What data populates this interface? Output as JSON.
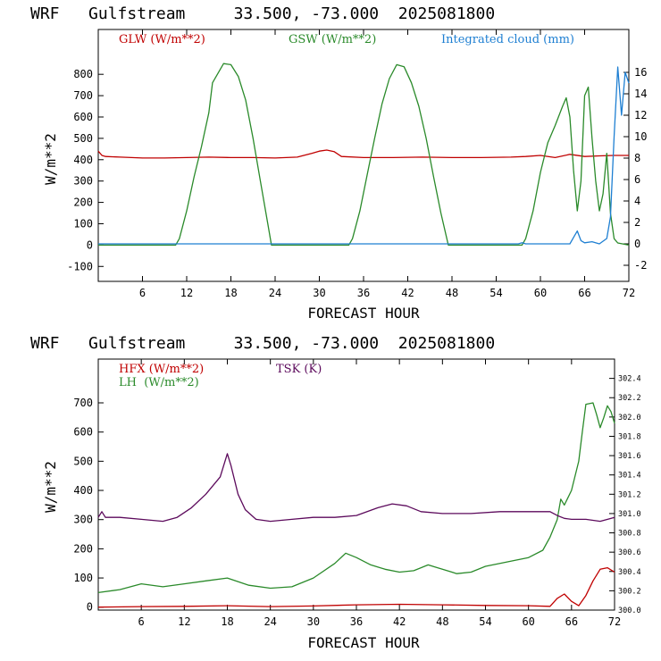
{
  "chart_data": [
    {
      "type": "line",
      "title": "WRF   Gulfstream     33.500, -73.000  2025081800",
      "xlabel": "FORECAST HOUR",
      "ylabel": "W/m**2",
      "xlim": [
        0,
        72
      ],
      "ylim": [
        -170,
        1010
      ],
      "y2lim": [
        -3.5,
        20
      ],
      "x_ticks": [
        6,
        12,
        18,
        24,
        30,
        36,
        42,
        48,
        54,
        60,
        66,
        72
      ],
      "y_ticks": [
        -100,
        0,
        100,
        200,
        300,
        400,
        500,
        600,
        700,
        800
      ],
      "y2_ticks": [
        -2,
        0,
        2,
        4,
        6,
        8,
        10,
        12,
        14,
        16
      ],
      "grid": false,
      "legend_placement": "top",
      "series": [
        {
          "name": "GLW (W/m**2)",
          "color": "#c00000",
          "axis": "left",
          "points": [
            [
              0,
              440
            ],
            [
              0.5,
              420
            ],
            [
              1,
              415
            ],
            [
              3,
              412
            ],
            [
              6,
              408
            ],
            [
              9,
              408
            ],
            [
              12,
              410
            ],
            [
              15,
              412
            ],
            [
              18,
              410
            ],
            [
              21,
              410
            ],
            [
              24,
              408
            ],
            [
              27,
              412
            ],
            [
              29,
              430
            ],
            [
              30,
              440
            ],
            [
              31,
              445
            ],
            [
              32,
              438
            ],
            [
              33,
              415
            ],
            [
              36,
              410
            ],
            [
              40,
              410
            ],
            [
              44,
              412
            ],
            [
              48,
              410
            ],
            [
              52,
              410
            ],
            [
              56,
              412
            ],
            [
              58,
              415
            ],
            [
              60,
              420
            ],
            [
              62,
              410
            ],
            [
              64,
              425
            ],
            [
              66,
              415
            ],
            [
              68,
              418
            ],
            [
              70,
              420
            ],
            [
              72,
              420
            ]
          ]
        },
        {
          "name": "GSW (W/m**2)",
          "color": "#2a8a2a",
          "axis": "left",
          "points": [
            [
              0,
              0
            ],
            [
              10.5,
              0
            ],
            [
              11,
              30
            ],
            [
              12,
              160
            ],
            [
              13,
              320
            ],
            [
              14,
              460
            ],
            [
              15,
              620
            ],
            [
              15.5,
              760
            ],
            [
              16,
              790
            ],
            [
              17,
              850
            ],
            [
              18,
              845
            ],
            [
              19,
              790
            ],
            [
              20,
              680
            ],
            [
              21,
              500
            ],
            [
              22,
              300
            ],
            [
              23,
              100
            ],
            [
              23.5,
              0
            ],
            [
              34,
              0
            ],
            [
              34.5,
              30
            ],
            [
              35.5,
              160
            ],
            [
              36.5,
              330
            ],
            [
              37.5,
              500
            ],
            [
              38.5,
              660
            ],
            [
              39.5,
              780
            ],
            [
              40.5,
              845
            ],
            [
              41.5,
              835
            ],
            [
              42.5,
              760
            ],
            [
              43.5,
              650
            ],
            [
              44.5,
              500
            ],
            [
              45.5,
              320
            ],
            [
              46.5,
              150
            ],
            [
              47.5,
              0
            ],
            [
              57.5,
              0
            ],
            [
              58,
              30
            ],
            [
              59,
              160
            ],
            [
              60,
              340
            ],
            [
              61,
              480
            ],
            [
              62,
              560
            ],
            [
              63,
              650
            ],
            [
              63.5,
              690
            ],
            [
              64,
              600
            ],
            [
              64.5,
              350
            ],
            [
              65,
              160
            ],
            [
              65.5,
              300
            ],
            [
              66,
              700
            ],
            [
              66.5,
              740
            ],
            [
              67,
              500
            ],
            [
              67.5,
              300
            ],
            [
              68,
              160
            ],
            [
              68.5,
              240
            ],
            [
              69,
              430
            ],
            [
              69.5,
              150
            ],
            [
              70,
              30
            ],
            [
              70.5,
              10
            ],
            [
              72,
              0
            ]
          ]
        },
        {
          "name": "Integrated cloud (mm)",
          "color": "#1e7fd2",
          "axis": "right",
          "points": [
            [
              0,
              0
            ],
            [
              57,
              0
            ],
            [
              57.5,
              0.1
            ],
            [
              58,
              0
            ],
            [
              64,
              0
            ],
            [
              64.5,
              0.6
            ],
            [
              65,
              1.2
            ],
            [
              65.5,
              0.3
            ],
            [
              66,
              0.1
            ],
            [
              67,
              0.2
            ],
            [
              68,
              0
            ],
            [
              69,
              0.5
            ],
            [
              69.5,
              2.5
            ],
            [
              70,
              10
            ],
            [
              70.5,
              16.5
            ],
            [
              71,
              12
            ],
            [
              71.5,
              16
            ],
            [
              72,
              15
            ]
          ]
        }
      ]
    },
    {
      "type": "line",
      "title": "WRF   Gulfstream     33.500, -73.000  2025081800",
      "xlabel": "FORECAST HOUR",
      "ylabel": "W/m**2",
      "xlim": [
        0,
        72
      ],
      "ylim": [
        -10,
        850
      ],
      "y2lim": [
        300.0,
        302.6
      ],
      "x_ticks": [
        6,
        12,
        18,
        24,
        30,
        36,
        42,
        48,
        54,
        60,
        66,
        72
      ],
      "y_ticks": [
        0,
        100,
        200,
        300,
        400,
        500,
        600,
        700
      ],
      "y2_ticks": [
        "300.0",
        "300.2",
        "300.4",
        "300.6",
        "300.8",
        "301.0",
        "301.2",
        "301.4",
        "301.6",
        "301.8",
        "302.0",
        "302.2",
        "302.4"
      ],
      "grid": false,
      "legend_placement": "top-left",
      "series": [
        {
          "name": "HFX (W/m**2)",
          "color": "#c00000",
          "axis": "left",
          "points": [
            [
              0,
              0
            ],
            [
              6,
              2
            ],
            [
              12,
              3
            ],
            [
              18,
              5
            ],
            [
              24,
              2
            ],
            [
              30,
              4
            ],
            [
              36,
              8
            ],
            [
              42,
              10
            ],
            [
              48,
              8
            ],
            [
              54,
              6
            ],
            [
              60,
              5
            ],
            [
              63,
              3
            ],
            [
              64,
              30
            ],
            [
              65,
              45
            ],
            [
              66,
              20
            ],
            [
              67,
              5
            ],
            [
              68,
              40
            ],
            [
              69,
              90
            ],
            [
              70,
              130
            ],
            [
              71,
              135
            ],
            [
              72,
              120
            ]
          ]
        },
        {
          "name": "LH  (W/m**2)",
          "color": "#2a8a2a",
          "axis": "left",
          "points": [
            [
              0,
              50
            ],
            [
              3,
              60
            ],
            [
              6,
              80
            ],
            [
              9,
              70
            ],
            [
              12,
              80
            ],
            [
              15,
              90
            ],
            [
              18,
              100
            ],
            [
              21,
              75
            ],
            [
              24,
              65
            ],
            [
              27,
              70
            ],
            [
              30,
              100
            ],
            [
              33,
              150
            ],
            [
              34.5,
              185
            ],
            [
              36,
              170
            ],
            [
              38,
              145
            ],
            [
              40,
              130
            ],
            [
              42,
              120
            ],
            [
              44,
              125
            ],
            [
              46,
              145
            ],
            [
              48,
              130
            ],
            [
              50,
              115
            ],
            [
              52,
              120
            ],
            [
              54,
              140
            ],
            [
              56,
              150
            ],
            [
              58,
              160
            ],
            [
              60,
              170
            ],
            [
              62,
              195
            ],
            [
              63,
              240
            ],
            [
              64,
              300
            ],
            [
              64.5,
              370
            ],
            [
              65,
              350
            ],
            [
              66,
              400
            ],
            [
              67,
              500
            ],
            [
              67.5,
              600
            ],
            [
              68,
              695
            ],
            [
              69,
              700
            ],
            [
              69.5,
              660
            ],
            [
              70,
              615
            ],
            [
              70.5,
              650
            ],
            [
              71,
              690
            ],
            [
              71.5,
              670
            ],
            [
              72,
              630
            ]
          ]
        },
        {
          "name": "TSK (K)",
          "color": "#5c0a5c",
          "axis": "right",
          "points": [
            [
              0,
              300.96
            ],
            [
              0.5,
              301.02
            ],
            [
              1,
              300.96
            ],
            [
              3,
              300.96
            ],
            [
              6,
              300.94
            ],
            [
              9,
              300.92
            ],
            [
              11,
              300.96
            ],
            [
              13,
              301.06
            ],
            [
              15,
              301.2
            ],
            [
              17,
              301.38
            ],
            [
              18,
              301.62
            ],
            [
              18.5,
              301.5
            ],
            [
              19.5,
              301.2
            ],
            [
              20.5,
              301.04
            ],
            [
              22,
              300.94
            ],
            [
              24,
              300.92
            ],
            [
              27,
              300.94
            ],
            [
              30,
              300.96
            ],
            [
              33,
              300.96
            ],
            [
              36,
              300.98
            ],
            [
              39,
              301.06
            ],
            [
              41,
              301.1
            ],
            [
              43,
              301.08
            ],
            [
              45,
              301.02
            ],
            [
              48,
              301.0
            ],
            [
              52,
              301.0
            ],
            [
              56,
              301.02
            ],
            [
              60,
              301.02
            ],
            [
              63,
              301.02
            ],
            [
              64,
              300.98
            ],
            [
              65,
              300.95
            ],
            [
              66,
              300.94
            ],
            [
              68,
              300.94
            ],
            [
              70,
              300.92
            ],
            [
              72,
              300.96
            ]
          ]
        }
      ]
    }
  ]
}
